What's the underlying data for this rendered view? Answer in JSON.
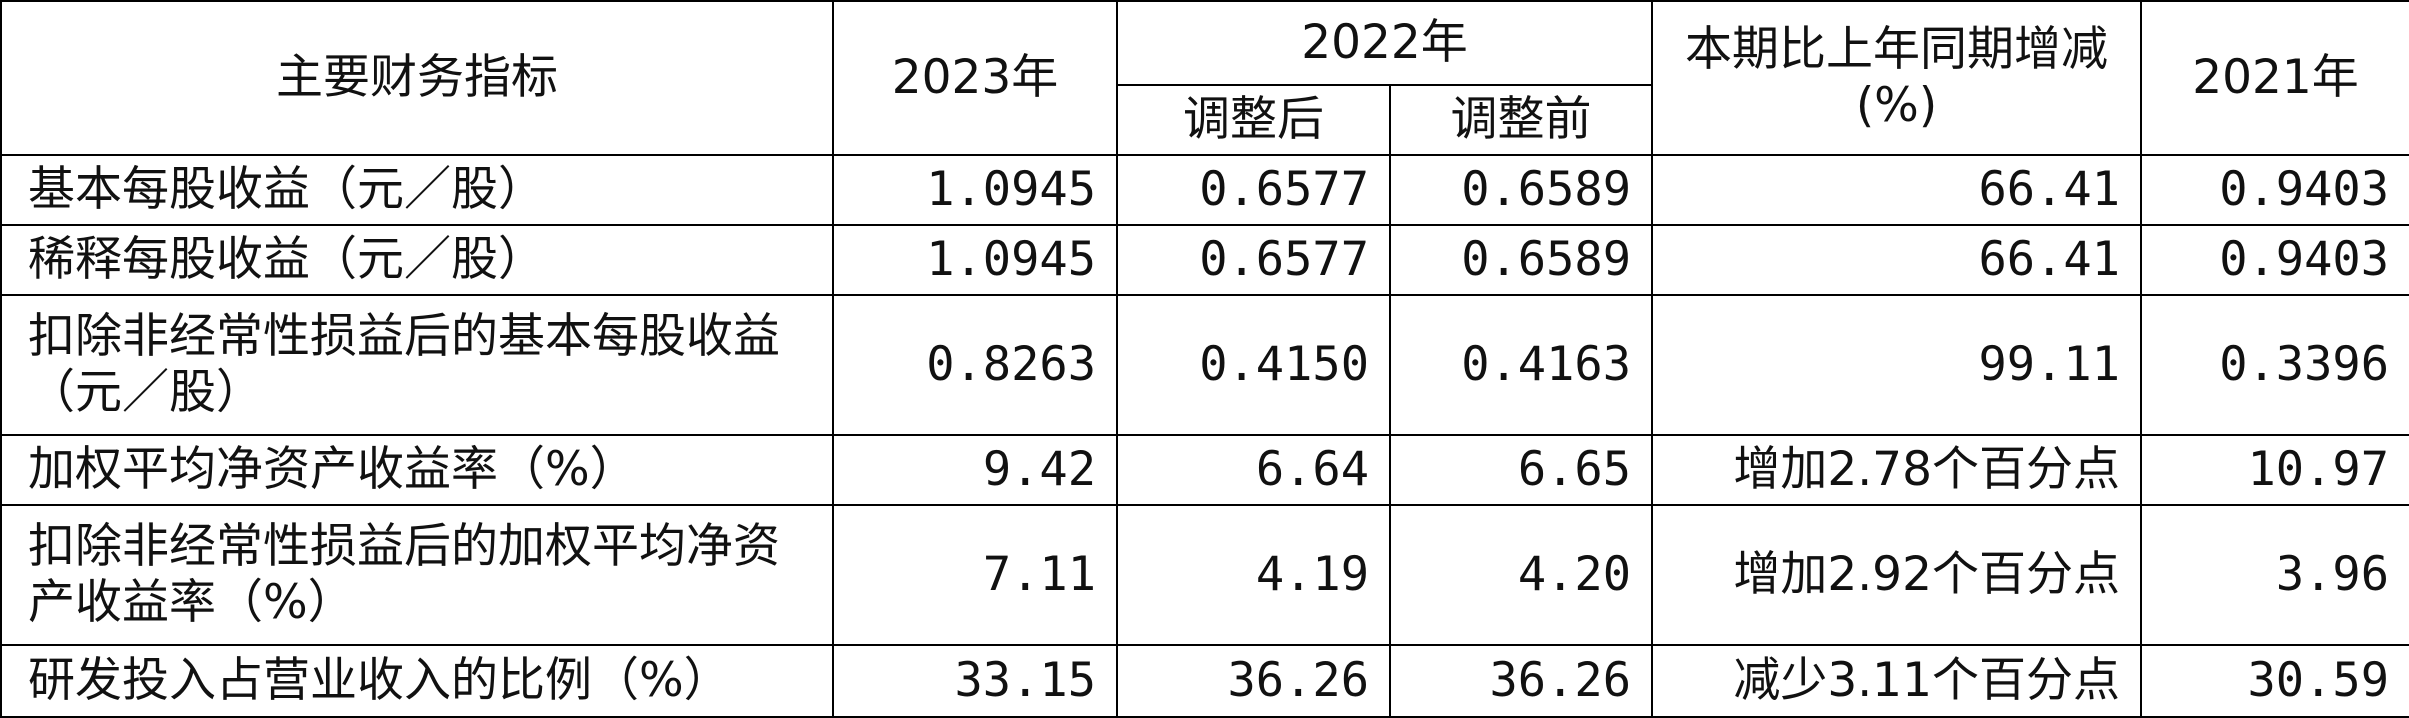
{
  "header": {
    "indicator": "主要财务指标",
    "y2023": "2023年",
    "y2022": "2022年",
    "adjusted_after": "调整后",
    "adjusted_before": "调整前",
    "change": "本期比上年同期增减(%)",
    "y2021": "2021年"
  },
  "rows": [
    {
      "label": "基本每股收益（元／股）",
      "v2023": "1.0945",
      "v2022_after": "0.6577",
      "v2022_before": "0.6589",
      "change": "66.41",
      "v2021": "0.9403"
    },
    {
      "label": "稀释每股收益（元／股）",
      "v2023": "1.0945",
      "v2022_after": "0.6577",
      "v2022_before": "0.6589",
      "change": "66.41",
      "v2021": "0.9403"
    },
    {
      "label": "扣除非经常性损益后的基本每股收益（元／股）",
      "v2023": "0.8263",
      "v2022_after": "0.4150",
      "v2022_before": "0.4163",
      "change": "99.11",
      "v2021": "0.3396"
    },
    {
      "label": "加权平均净资产收益率（%）",
      "v2023": "9.42",
      "v2022_after": "6.64",
      "v2022_before": "6.65",
      "change": "增加2.78个百分点",
      "v2021": "10.97"
    },
    {
      "label": "扣除非经常性损益后的加权平均净资产收益率（%）",
      "v2023": "7.11",
      "v2022_after": "4.19",
      "v2022_before": "4.20",
      "change": "增加2.92个百分点",
      "v2021": "3.96"
    },
    {
      "label": "研发投入占营业收入的比例（%）",
      "v2023": "33.15",
      "v2022_after": "36.26",
      "v2022_before": "36.26",
      "change": "减少3.11个百分点",
      "v2021": "30.59"
    }
  ]
}
